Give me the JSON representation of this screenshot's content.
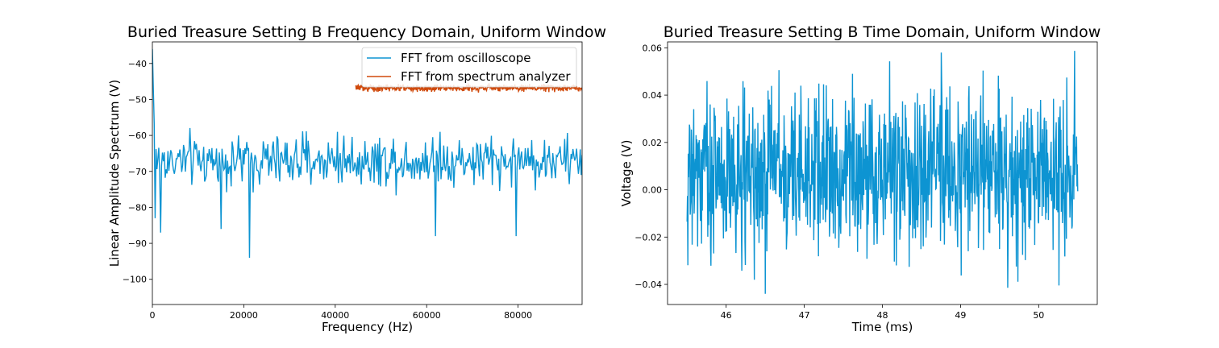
{
  "chart_data": [
    {
      "type": "line",
      "title": "Buried Treasure Setting B Frequency Domain, Uniform Window",
      "xlabel": "Frequency (Hz)",
      "ylabel": "Linear Amplitude Spectrum (V)",
      "xlim": [
        0,
        94000
      ],
      "ylim": [
        -107,
        -34
      ],
      "xticks": [
        0,
        20000,
        40000,
        60000,
        80000
      ],
      "xtick_labels": [
        "0",
        "20000",
        "40000",
        "60000",
        "80000"
      ],
      "yticks": [
        -100,
        -90,
        -80,
        -70,
        -60,
        -50,
        -40
      ],
      "ytick_labels": [
        "−100",
        "−90",
        "−80",
        "−70",
        "−60",
        "−50",
        "−40"
      ],
      "grid": false,
      "legend_position": "top-right",
      "series": [
        {
          "name": "FFT from oscilloscope",
          "color": "#0d94d2",
          "x_range": [
            0,
            94000
          ],
          "points": 470,
          "baseline": -67,
          "noise_amplitude": 3.5,
          "start_value": -36,
          "notable_dips": [
            [
              700,
              -83
            ],
            [
              1900,
              -87
            ],
            [
              15000,
              -86
            ],
            [
              21300,
              -94
            ],
            [
              62000,
              -88
            ],
            [
              79500,
              -88
            ]
          ],
          "notable_peaks": [
            [
              40500,
              -59
            ],
            [
              63000,
              -59
            ]
          ]
        },
        {
          "name": "FFT from spectrum analyzer",
          "color": "#d04a0c",
          "x_range": [
            44500,
            94000
          ],
          "points": 560,
          "baseline": -46.8,
          "noise_amplitude": 0.5
        }
      ]
    },
    {
      "type": "line",
      "title": "Buried Treasure Setting B Time Domain, Uniform Window",
      "xlabel": "Time (ms)",
      "ylabel": "Voltage (V)",
      "xlim": [
        45.25,
        50.75
      ],
      "ylim": [
        -0.0485,
        0.0625
      ],
      "xticks": [
        46,
        47,
        48,
        49,
        50
      ],
      "xtick_labels": [
        "46",
        "47",
        "48",
        "49",
        "50"
      ],
      "yticks": [
        -0.04,
        -0.02,
        0.0,
        0.02,
        0.04,
        0.06
      ],
      "ytick_labels": [
        "−0.04",
        "−0.02",
        "0.00",
        "0.02",
        "0.04",
        "0.06"
      ],
      "grid": false,
      "series": [
        {
          "color": "#0d94d2",
          "x_range": [
            45.5,
            50.5
          ],
          "points": 1000,
          "baseline": 0.008,
          "noise_amplitude": 0.018,
          "max_value": 0.058,
          "min_value": -0.044
        }
      ]
    }
  ]
}
